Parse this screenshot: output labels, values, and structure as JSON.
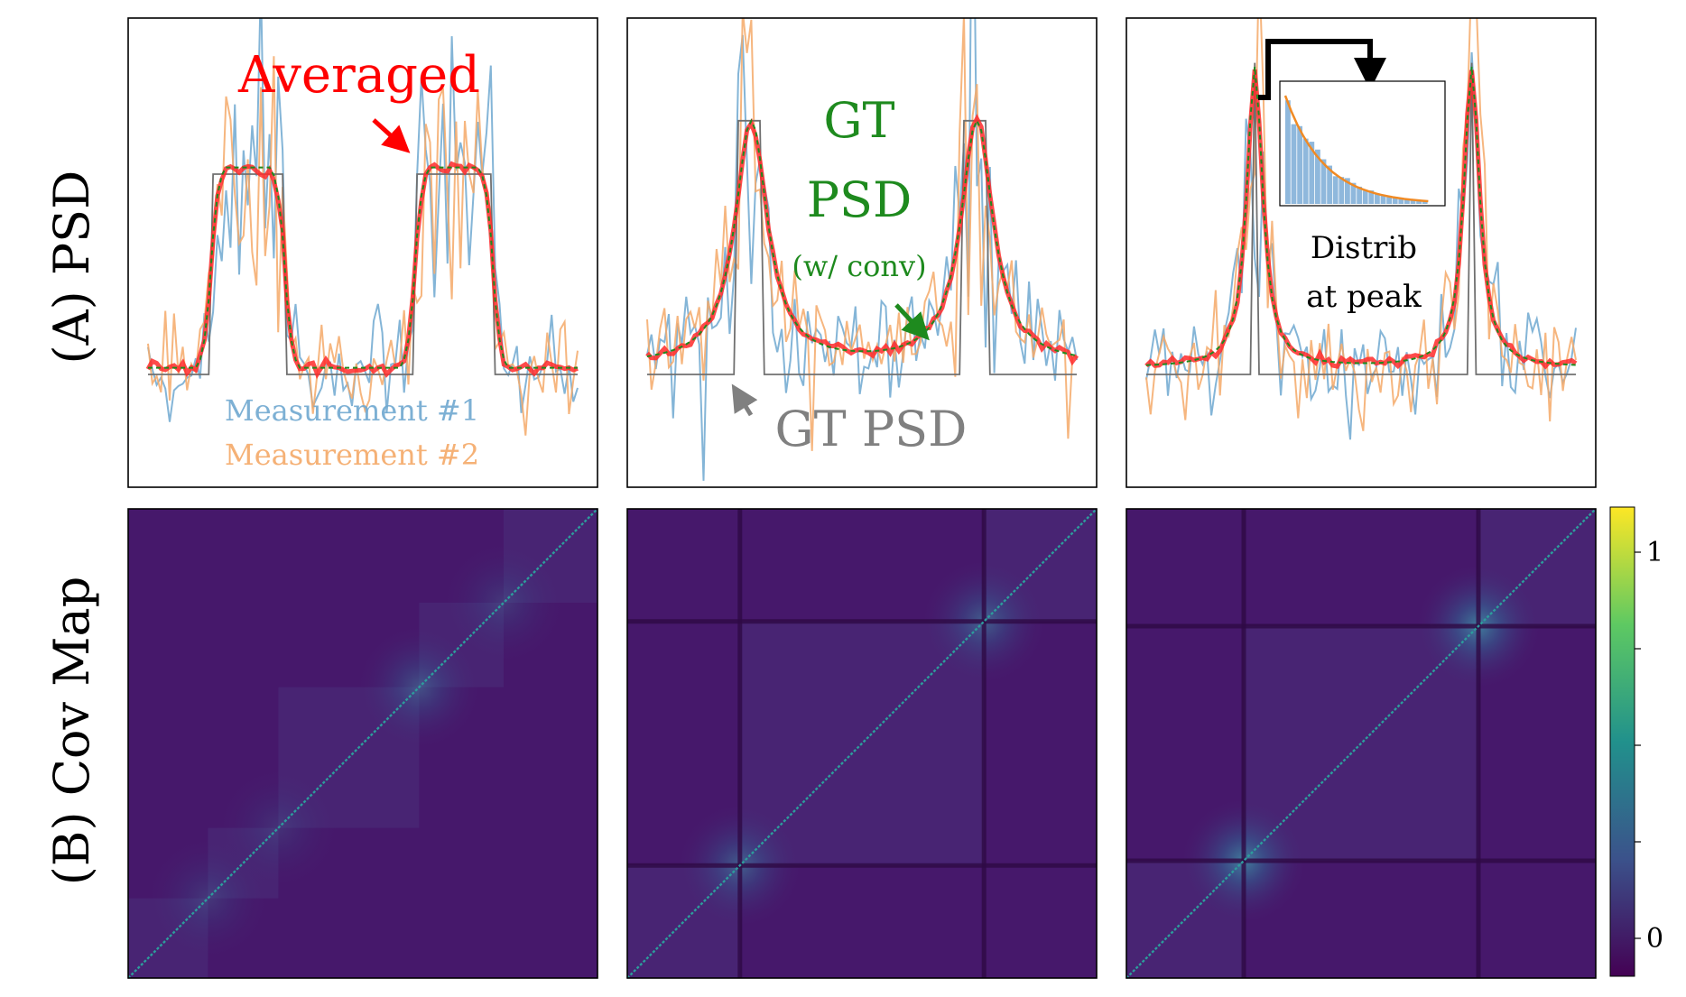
{
  "rows": {
    "a": "(A) PSD",
    "b": "(B) Cov Map"
  },
  "colors": {
    "measurement1": "#6fa8d0",
    "measurement2": "#f5a968",
    "averaged": "#ff0000",
    "gt_conv": "#1e8a1e",
    "gt_psd": "#808080",
    "annotation_black": "#000000"
  },
  "chart_data": [
    {
      "type": "line",
      "panel": "A1",
      "ylim": [
        0,
        1.12
      ],
      "series": [
        {
          "name": "Measurement #1",
          "color": "#6fa8d0"
        },
        {
          "name": "Measurement #2",
          "color": "#f5a968"
        },
        {
          "name": "Averaged",
          "color": "#ff0000"
        },
        {
          "name": "GT PSD",
          "color": "#808080"
        }
      ],
      "annotations": [
        {
          "text": "Averaged",
          "color": "#ff0000"
        },
        {
          "text": "Measurement #1",
          "color": "#6fa8d0"
        },
        {
          "text": "Measurement #2",
          "color": "#f5a968"
        }
      ]
    },
    {
      "type": "line",
      "panel": "A2",
      "ylim": [
        0,
        1.12
      ],
      "series": [
        {
          "name": "GT PSD",
          "color": "#808080"
        },
        {
          "name": "GT PSD (w/ conv)",
          "color": "#1e8a1e"
        }
      ],
      "annotations": [
        {
          "text": "GT",
          "color": "#1e8a1e"
        },
        {
          "text": "PSD",
          "color": "#1e8a1e"
        },
        {
          "text": "(w/ conv)",
          "color": "#1e8a1e"
        },
        {
          "text": "GT PSD",
          "color": "#808080"
        }
      ]
    },
    {
      "type": "line",
      "panel": "A3",
      "ylim": [
        0,
        1.12
      ],
      "inset": {
        "type": "bar",
        "description": "histogram with exponential fit"
      },
      "annotations": [
        {
          "text": "Distrib",
          "color": "#000000"
        },
        {
          "text": "at peak",
          "color": "#000000"
        }
      ]
    },
    {
      "type": "heatmap",
      "panel": "B1"
    },
    {
      "type": "heatmap",
      "panel": "B2"
    },
    {
      "type": "heatmap",
      "panel": "B3"
    }
  ],
  "colorbar": {
    "ticks": [
      "1",
      "0"
    ],
    "colormap": "viridis"
  }
}
